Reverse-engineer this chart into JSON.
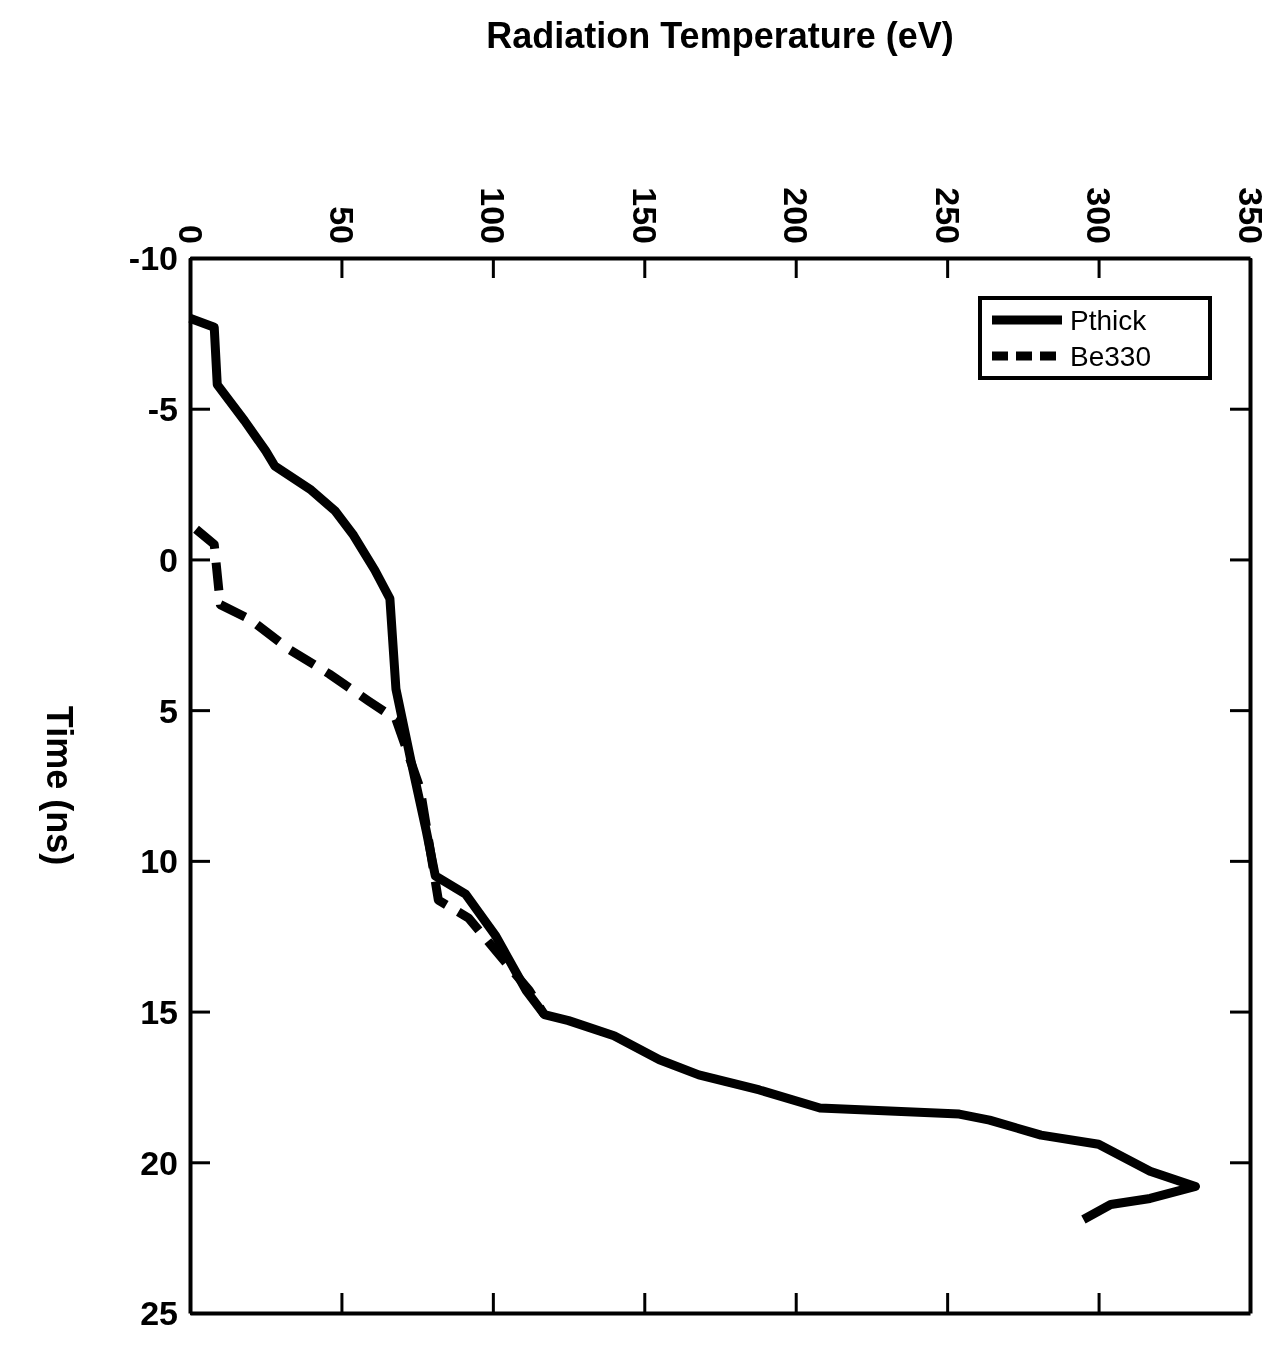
{
  "chart_data": {
    "type": "line",
    "xlabel": "Radiation Temperature (eV)",
    "ylabel": "Time (ns)",
    "xlim": [
      0,
      350
    ],
    "ylim": [
      25,
      -10
    ],
    "yticks": [
      -10,
      -5,
      0,
      5,
      10,
      15,
      20,
      25
    ],
    "xticks": [
      0,
      50,
      100,
      150,
      200,
      250,
      300,
      350
    ],
    "grid": false,
    "legend": "top right",
    "marker": "none",
    "series": [
      {
        "name": "Pthick",
        "color": "#000000",
        "line_style": "solid",
        "values": [
          -8,
          -7.7,
          -5.8,
          -4.6,
          -3.6,
          -3.1,
          -2.3,
          -1.6,
          -0.8,
          0.35,
          1.3,
          4.3,
          6.7,
          9,
          10.5,
          11.1,
          12.5,
          14.3,
          15.1,
          15.3,
          15.8,
          16.6,
          17.1,
          17.6,
          18.2,
          18.4,
          18.6,
          19.1,
          19.4,
          20.3,
          20.8,
          21.2,
          21.4,
          21.9
        ],
        "x": [
          0,
          8,
          9,
          18,
          25,
          28,
          40,
          48,
          54,
          61,
          66,
          68,
          73,
          78,
          81,
          91,
          101,
          111,
          117,
          125,
          140,
          155,
          168,
          188,
          208,
          254,
          264,
          281,
          300,
          317,
          332,
          317,
          304,
          295
        ]
      },
      {
        "name": "Be330",
        "color": "#000000",
        "line_style": "dashed",
        "values": [
          -1,
          -0.5,
          1.5,
          2,
          3,
          3.8,
          4.7,
          5.3,
          7.6,
          11.3,
          11.9,
          13.1,
          14.3,
          15.1
        ],
        "x": [
          2,
          8,
          10,
          20,
          33,
          46,
          59,
          68,
          76,
          82,
          92,
          102,
          112,
          117
        ]
      }
    ]
  }
}
